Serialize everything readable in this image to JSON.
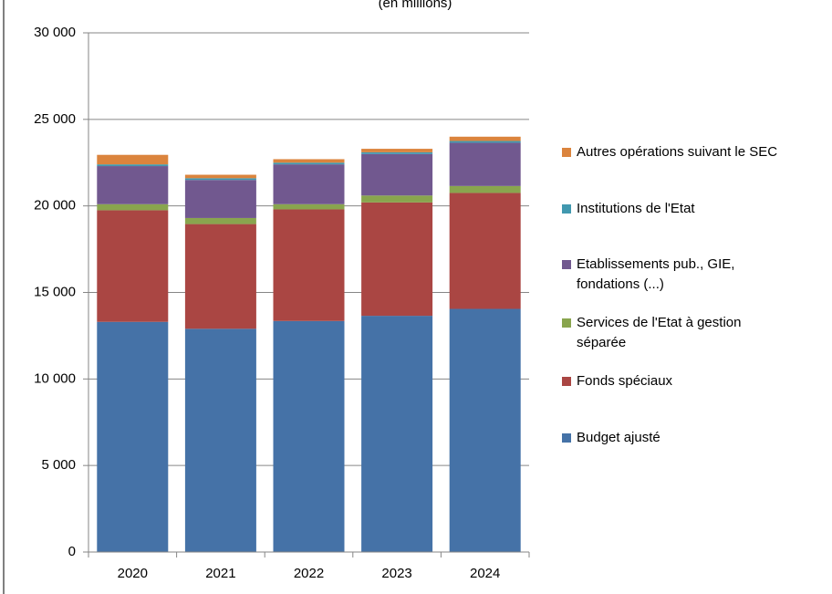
{
  "chart_data": {
    "type": "stacked_bar",
    "subtitle": "(en millions)",
    "categories": [
      "2020",
      "2021",
      "2022",
      "2023",
      "2024"
    ],
    "series": [
      {
        "name": "Budget ajusté",
        "color": "#4572a7",
        "values": [
          13300,
          12900,
          13350,
          13650,
          14050
        ]
      },
      {
        "name": "Fonds spéciaux",
        "color": "#aa4643",
        "values": [
          6450,
          6050,
          6450,
          6550,
          6700
        ]
      },
      {
        "name": "Services de l'Etat à gestion séparée",
        "color": "#89a54e",
        "values": [
          350,
          350,
          300,
          400,
          400
        ]
      },
      {
        "name": "Etablissements pub., GIE, fondations (...)",
        "color": "#71588f",
        "values": [
          2200,
          2200,
          2300,
          2400,
          2500
        ]
      },
      {
        "name": "Institutions de l'Etat",
        "color": "#4198af",
        "values": [
          100,
          100,
          100,
          100,
          100
        ]
      },
      {
        "name": "Autres opérations suivant le SEC",
        "color": "#db843d",
        "values": [
          550,
          200,
          200,
          200,
          250
        ]
      }
    ],
    "ylim": [
      0,
      30000
    ],
    "yticks": [
      0,
      {
        "value": 5000,
        "label": "5 000"
      },
      {
        "value": 10000,
        "label": "10 000"
      },
      {
        "value": 15000,
        "label": "15 000"
      },
      {
        "value": 20000,
        "label": "20 000"
      },
      {
        "value": 25000,
        "label": "25 000"
      },
      {
        "value": 30000,
        "label": "30 000"
      }
    ],
    "grid": true,
    "legend": "right"
  }
}
